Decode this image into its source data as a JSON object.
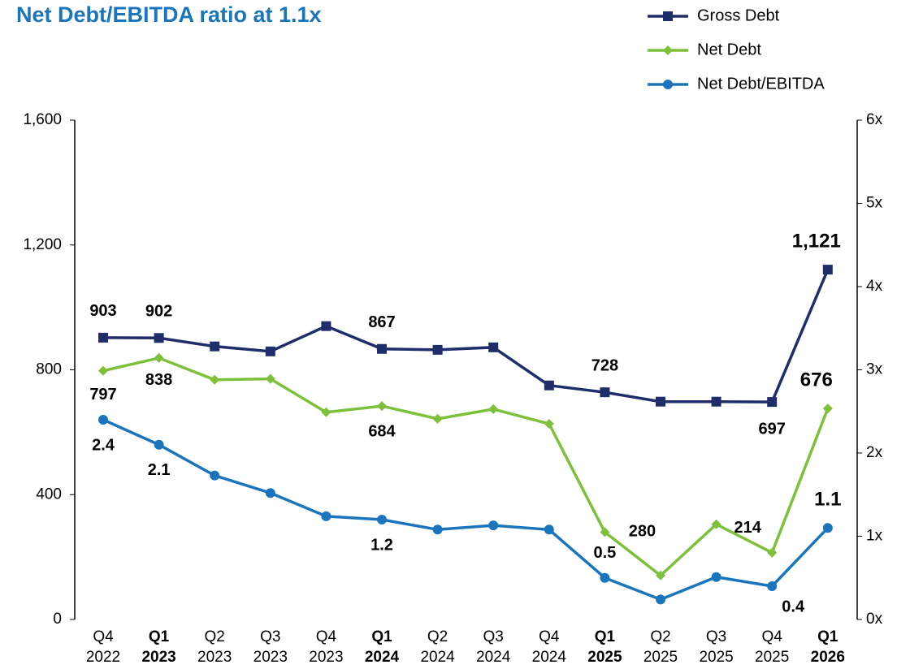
{
  "chart_data": {
    "type": "line",
    "title": "Net Debt/EBITDA ratio at 1.1x",
    "categories": [
      "Q4\n2022",
      "Q1\n2023",
      "Q2\n2023",
      "Q3\n2023",
      "Q4\n2023",
      "Q1\n2024",
      "Q2\n2024",
      "Q3\n2024",
      "Q4\n2024",
      "Q1\n2025",
      "Q2\n2025",
      "Q3\n2025",
      "Q4\n2025",
      "Q1\n2026"
    ],
    "series": [
      {
        "name": "Gross Debt",
        "color": "#1f2d6b",
        "marker": "square",
        "values": [
          903,
          902,
          875,
          859,
          940,
          867,
          864,
          872,
          750,
          728,
          698,
          698,
          697,
          1121
        ],
        "value_labels": [
          "903",
          "902",
          null,
          null,
          null,
          "867",
          null,
          null,
          null,
          "728",
          null,
          null,
          "697",
          "1,121"
        ]
      },
      {
        "name": "Net Debt",
        "color": "#7dc13a",
        "marker": "diamond",
        "values": [
          797,
          838,
          768,
          771,
          664,
          684,
          643,
          674,
          627,
          280,
          141,
          305,
          214,
          676
        ],
        "value_labels": [
          "797",
          "838",
          null,
          null,
          null,
          "684",
          null,
          null,
          null,
          "280",
          null,
          null,
          "214",
          "676"
        ]
      },
      {
        "name": "Net Debt/EBITDA",
        "color": "#1b75bc",
        "marker": "circle",
        "axis": "y2",
        "values": [
          2.4,
          2.1,
          1.73,
          1.52,
          1.24,
          1.2,
          1.08,
          1.13,
          1.08,
          0.5,
          0.24,
          0.51,
          0.4,
          1.1
        ],
        "value_labels": [
          "2.4",
          "2.1",
          null,
          null,
          null,
          "1.2",
          null,
          null,
          null,
          "0.5",
          null,
          null,
          "0.4",
          "1.1"
        ]
      }
    ],
    "ylim": [
      0,
      1600
    ],
    "yticks": [
      0,
      400,
      800,
      {
        "value": 1200,
        "label": "1,200"
      },
      {
        "value": 1600,
        "label": "1,600"
      }
    ],
    "y2lim": [
      0,
      6
    ],
    "y2ticks": [
      {
        "value": 0,
        "label": "0x"
      },
      {
        "value": 1,
        "label": "1x"
      },
      {
        "value": 2,
        "label": "2x"
      },
      {
        "value": 3,
        "label": "3x"
      },
      {
        "value": 4,
        "label": "4x"
      },
      {
        "value": 5,
        "label": "5x"
      },
      {
        "value": 6,
        "label": "6x"
      }
    ],
    "legend": "top-right"
  }
}
